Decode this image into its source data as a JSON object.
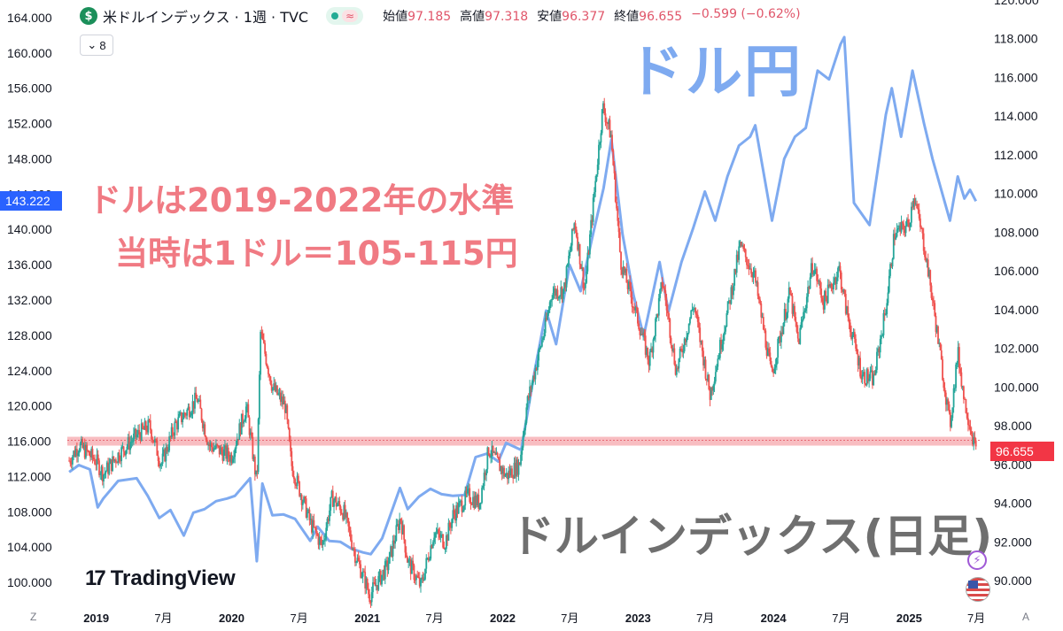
{
  "header": {
    "symbol_icon": "$",
    "symbol": "米ドルインデックス · 1週 · TVC",
    "status_wave": "≈",
    "ohlc": [
      {
        "key": "始値",
        "value": "97.185"
      },
      {
        "key": "高値",
        "value": "97.318"
      },
      {
        "key": "安値",
        "value": "96.377"
      },
      {
        "key": "終値",
        "value": "96.655"
      },
      {
        "key": "",
        "value": "−0.599 (−0.62%)"
      }
    ],
    "indicator_count": "8"
  },
  "annotations": {
    "dollar_yen": "ドル円",
    "dollar_index_daily": "ドルインデックス(日足)",
    "note_line1": "ドルは2019-2022年の水準",
    "note_line2": "当時は1ドル＝105-115円"
  },
  "logo": {
    "mark": "17",
    "name": "TradingView"
  },
  "corner_labels": {
    "left": "Z",
    "right": "A"
  },
  "icons": {
    "symbol": "dollar-circle-icon",
    "bolt": "lightning-icon",
    "flag": "us-flag-icon",
    "logo": "tradingview-logo-icon"
  },
  "colors": {
    "up": "#26a69a",
    "down": "#ef5350",
    "usdjpy_line": "#7eaaf0",
    "support_band": "#f7b2b6",
    "last_price_badge": "#f23645",
    "usdjpy_badge": "#2962ff",
    "note": "#f07a83",
    "watermark_dxy": "#6f6f6f"
  },
  "chart_data": {
    "type": "line",
    "x_tick_labels": [
      "2019",
      "7月",
      "2020",
      "7月",
      "2021",
      "7月",
      "2022",
      "7月",
      "2023",
      "7月",
      "2024",
      "7月",
      "2025",
      "7月"
    ],
    "x_ticks": [
      "2019-01-01",
      "2019-07-01",
      "2020-01-01",
      "2020-07-01",
      "2021-01-01",
      "2021-07-01",
      "2022-01-01",
      "2022-07-01",
      "2023-01-01",
      "2023-07-01",
      "2024-01-01",
      "2024-07-01",
      "2025-01-01",
      "2025-07-01"
    ],
    "xlim": [
      "2018-10-15",
      "2025-07-15"
    ],
    "left_axis": {
      "series": "ドル円",
      "ylim": [
        98,
        166
      ],
      "tick_labels": [
        "164.000",
        "160.000",
        "156.000",
        "152.000",
        "148.000",
        "144.000",
        "140.000",
        "136.000",
        "132.000",
        "128.000",
        "124.000",
        "120.000",
        "116.000",
        "112.000",
        "108.000",
        "104.000",
        "100.000"
      ],
      "current_value_label": "143.222"
    },
    "right_axis": {
      "series": "米ドルインデックス",
      "ylim": [
        89,
        120
      ],
      "tick_labels": [
        "120.000",
        "118.000",
        "116.000",
        "114.000",
        "112.000",
        "110.000",
        "108.000",
        "106.000",
        "104.000",
        "102.000",
        "100.000",
        "98.000",
        "96.000",
        "94.000",
        "92.000",
        "90.000"
      ],
      "current_value_label": "96.655"
    },
    "support_level_left": 116,
    "series": [
      {
        "name": "ドル円",
        "axis": "left",
        "points": [
          [
            "2018-10-20",
            112.5
          ],
          [
            "2018-11-15",
            113.3
          ],
          [
            "2018-12-15",
            112.8
          ],
          [
            "2019-01-05",
            108.5
          ],
          [
            "2019-01-20",
            109.5
          ],
          [
            "2019-03-01",
            111.5
          ],
          [
            "2019-04-20",
            111.8
          ],
          [
            "2019-05-20",
            109.8
          ],
          [
            "2019-06-20",
            107.3
          ],
          [
            "2019-07-20",
            108.2
          ],
          [
            "2019-08-25",
            105.3
          ],
          [
            "2019-09-20",
            107.9
          ],
          [
            "2019-10-20",
            108.3
          ],
          [
            "2019-11-20",
            109.2
          ],
          [
            "2019-12-20",
            109.5
          ],
          [
            "2020-01-10",
            109.8
          ],
          [
            "2020-02-20",
            111.8
          ],
          [
            "2020-03-09",
            102.4
          ],
          [
            "2020-03-24",
            111.2
          ],
          [
            "2020-04-20",
            107.6
          ],
          [
            "2020-05-20",
            107.7
          ],
          [
            "2020-06-20",
            107.2
          ],
          [
            "2020-07-31",
            104.7
          ],
          [
            "2020-08-20",
            106.3
          ],
          [
            "2020-09-20",
            104.7
          ],
          [
            "2020-10-20",
            104.6
          ],
          [
            "2020-11-20",
            103.8
          ],
          [
            "2020-12-20",
            103.4
          ],
          [
            "2021-01-10",
            103.2
          ],
          [
            "2021-02-10",
            105.0
          ],
          [
            "2021-03-30",
            110.7
          ],
          [
            "2021-04-20",
            108.3
          ],
          [
            "2021-05-20",
            109.7
          ],
          [
            "2021-06-20",
            110.6
          ],
          [
            "2021-07-20",
            110.0
          ],
          [
            "2021-08-20",
            109.8
          ],
          [
            "2021-09-20",
            109.9
          ],
          [
            "2021-10-20",
            114.2
          ],
          [
            "2021-11-20",
            114.6
          ],
          [
            "2021-12-20",
            113.7
          ],
          [
            "2022-01-10",
            115.8
          ],
          [
            "2022-02-20",
            115.0
          ],
          [
            "2022-03-28",
            123.9
          ],
          [
            "2022-04-28",
            130.8
          ],
          [
            "2022-05-25",
            127.0
          ],
          [
            "2022-06-30",
            136.0
          ],
          [
            "2022-07-30",
            133.0
          ],
          [
            "2022-08-30",
            139.0
          ],
          [
            "2022-09-30",
            144.7
          ],
          [
            "2022-10-21",
            150.2
          ],
          [
            "2022-11-20",
            139.5
          ],
          [
            "2022-12-20",
            132.5
          ],
          [
            "2023-01-16",
            127.9
          ],
          [
            "2023-02-28",
            136.3
          ],
          [
            "2023-03-24",
            130.7
          ],
          [
            "2023-04-28",
            136.3
          ],
          [
            "2023-05-30",
            140.2
          ],
          [
            "2023-06-30",
            144.3
          ],
          [
            "2023-07-28",
            141.0
          ],
          [
            "2023-08-30",
            146.0
          ],
          [
            "2023-09-30",
            149.5
          ],
          [
            "2023-10-30",
            150.5
          ],
          [
            "2023-11-13",
            151.8
          ],
          [
            "2023-12-28",
            141.0
          ],
          [
            "2024-01-30",
            148.0
          ],
          [
            "2024-02-28",
            150.5
          ],
          [
            "2024-03-28",
            151.5
          ],
          [
            "2024-04-29",
            158.0
          ],
          [
            "2024-05-30",
            157.0
          ],
          [
            "2024-06-30",
            161.0
          ],
          [
            "2024-07-10",
            161.8
          ],
          [
            "2024-08-05",
            143.0
          ],
          [
            "2024-09-16",
            140.5
          ],
          [
            "2024-10-30",
            153.0
          ],
          [
            "2024-11-15",
            156.0
          ],
          [
            "2024-12-10",
            150.5
          ],
          [
            "2025-01-10",
            158.0
          ],
          [
            "2025-02-10",
            152.0
          ],
          [
            "2025-03-05",
            148.0
          ],
          [
            "2025-04-21",
            141.0
          ],
          [
            "2025-05-12",
            146.0
          ],
          [
            "2025-05-30",
            143.5
          ],
          [
            "2025-06-14",
            144.5
          ],
          [
            "2025-06-30",
            143.2
          ]
        ]
      },
      {
        "name": "米ドルインデックス",
        "axis": "right",
        "type": "candlestick",
        "points": [
          [
            "2018-10-20",
            96.2
          ],
          [
            "2018-11-15",
            97.0
          ],
          [
            "2018-12-31",
            96.2
          ],
          [
            "2019-01-20",
            95.5
          ],
          [
            "2019-03-01",
            96.5
          ],
          [
            "2019-04-20",
            97.5
          ],
          [
            "2019-05-25",
            98.0
          ],
          [
            "2019-06-25",
            96.0
          ],
          [
            "2019-08-01",
            98.0
          ],
          [
            "2019-09-30",
            99.4
          ],
          [
            "2019-11-01",
            97.0
          ],
          [
            "2019-12-31",
            96.4
          ],
          [
            "2020-02-10",
            99.0
          ],
          [
            "2020-03-09",
            95.0
          ],
          [
            "2020-03-19",
            102.8
          ],
          [
            "2020-04-20",
            100.0
          ],
          [
            "2020-05-25",
            99.0
          ],
          [
            "2020-06-10",
            96.0
          ],
          [
            "2020-07-31",
            93.0
          ],
          [
            "2020-09-01",
            91.8
          ],
          [
            "2020-09-28",
            94.3
          ],
          [
            "2020-10-30",
            93.5
          ],
          [
            "2020-11-30",
            91.3
          ],
          [
            "2020-12-31",
            89.7
          ],
          [
            "2021-01-06",
            89.2
          ],
          [
            "2021-02-25",
            90.8
          ],
          [
            "2021-03-31",
            93.3
          ],
          [
            "2021-04-20",
            91.0
          ],
          [
            "2021-05-25",
            89.7
          ],
          [
            "2021-06-30",
            92.5
          ],
          [
            "2021-07-30",
            92.0
          ],
          [
            "2021-08-20",
            93.4
          ],
          [
            "2021-09-30",
            94.4
          ],
          [
            "2021-10-30",
            94.0
          ],
          [
            "2021-11-24",
            96.8
          ],
          [
            "2021-12-31",
            95.7
          ],
          [
            "2022-01-10",
            95.4
          ],
          [
            "2022-02-15",
            96.0
          ],
          [
            "2022-03-07",
            99.1
          ],
          [
            "2022-04-28",
            103.3
          ],
          [
            "2022-05-13",
            104.9
          ],
          [
            "2022-06-15",
            105.0
          ],
          [
            "2022-07-14",
            108.6
          ],
          [
            "2022-08-10",
            105.0
          ],
          [
            "2022-09-28",
            114.5
          ],
          [
            "2022-10-20",
            113.0
          ],
          [
            "2022-11-15",
            106.5
          ],
          [
            "2022-12-31",
            103.5
          ],
          [
            "2023-01-31",
            101.3
          ],
          [
            "2023-03-08",
            105.5
          ],
          [
            "2023-04-14",
            100.8
          ],
          [
            "2023-05-31",
            104.3
          ],
          [
            "2023-07-14",
            99.6
          ],
          [
            "2023-08-31",
            104.0
          ],
          [
            "2023-10-03",
            107.3
          ],
          [
            "2023-11-10",
            105.8
          ],
          [
            "2023-12-27",
            100.6
          ],
          [
            "2024-02-14",
            104.9
          ],
          [
            "2024-03-08",
            102.3
          ],
          [
            "2024-04-16",
            106.4
          ],
          [
            "2024-05-15",
            104.4
          ],
          [
            "2024-06-26",
            106.1
          ],
          [
            "2024-07-15",
            104.0
          ],
          [
            "2024-08-27",
            100.6
          ],
          [
            "2024-09-27",
            100.4
          ],
          [
            "2024-10-31",
            104.2
          ],
          [
            "2024-11-22",
            107.9
          ],
          [
            "2024-12-31",
            108.4
          ],
          [
            "2025-01-13",
            110.0
          ],
          [
            "2025-02-15",
            106.8
          ],
          [
            "2025-03-10",
            103.8
          ],
          [
            "2025-04-21",
            98.0
          ],
          [
            "2025-05-12",
            101.8
          ],
          [
            "2025-05-30",
            99.3
          ],
          [
            "2025-06-15",
            98.0
          ],
          [
            "2025-06-30",
            96.66
          ]
        ]
      }
    ]
  }
}
